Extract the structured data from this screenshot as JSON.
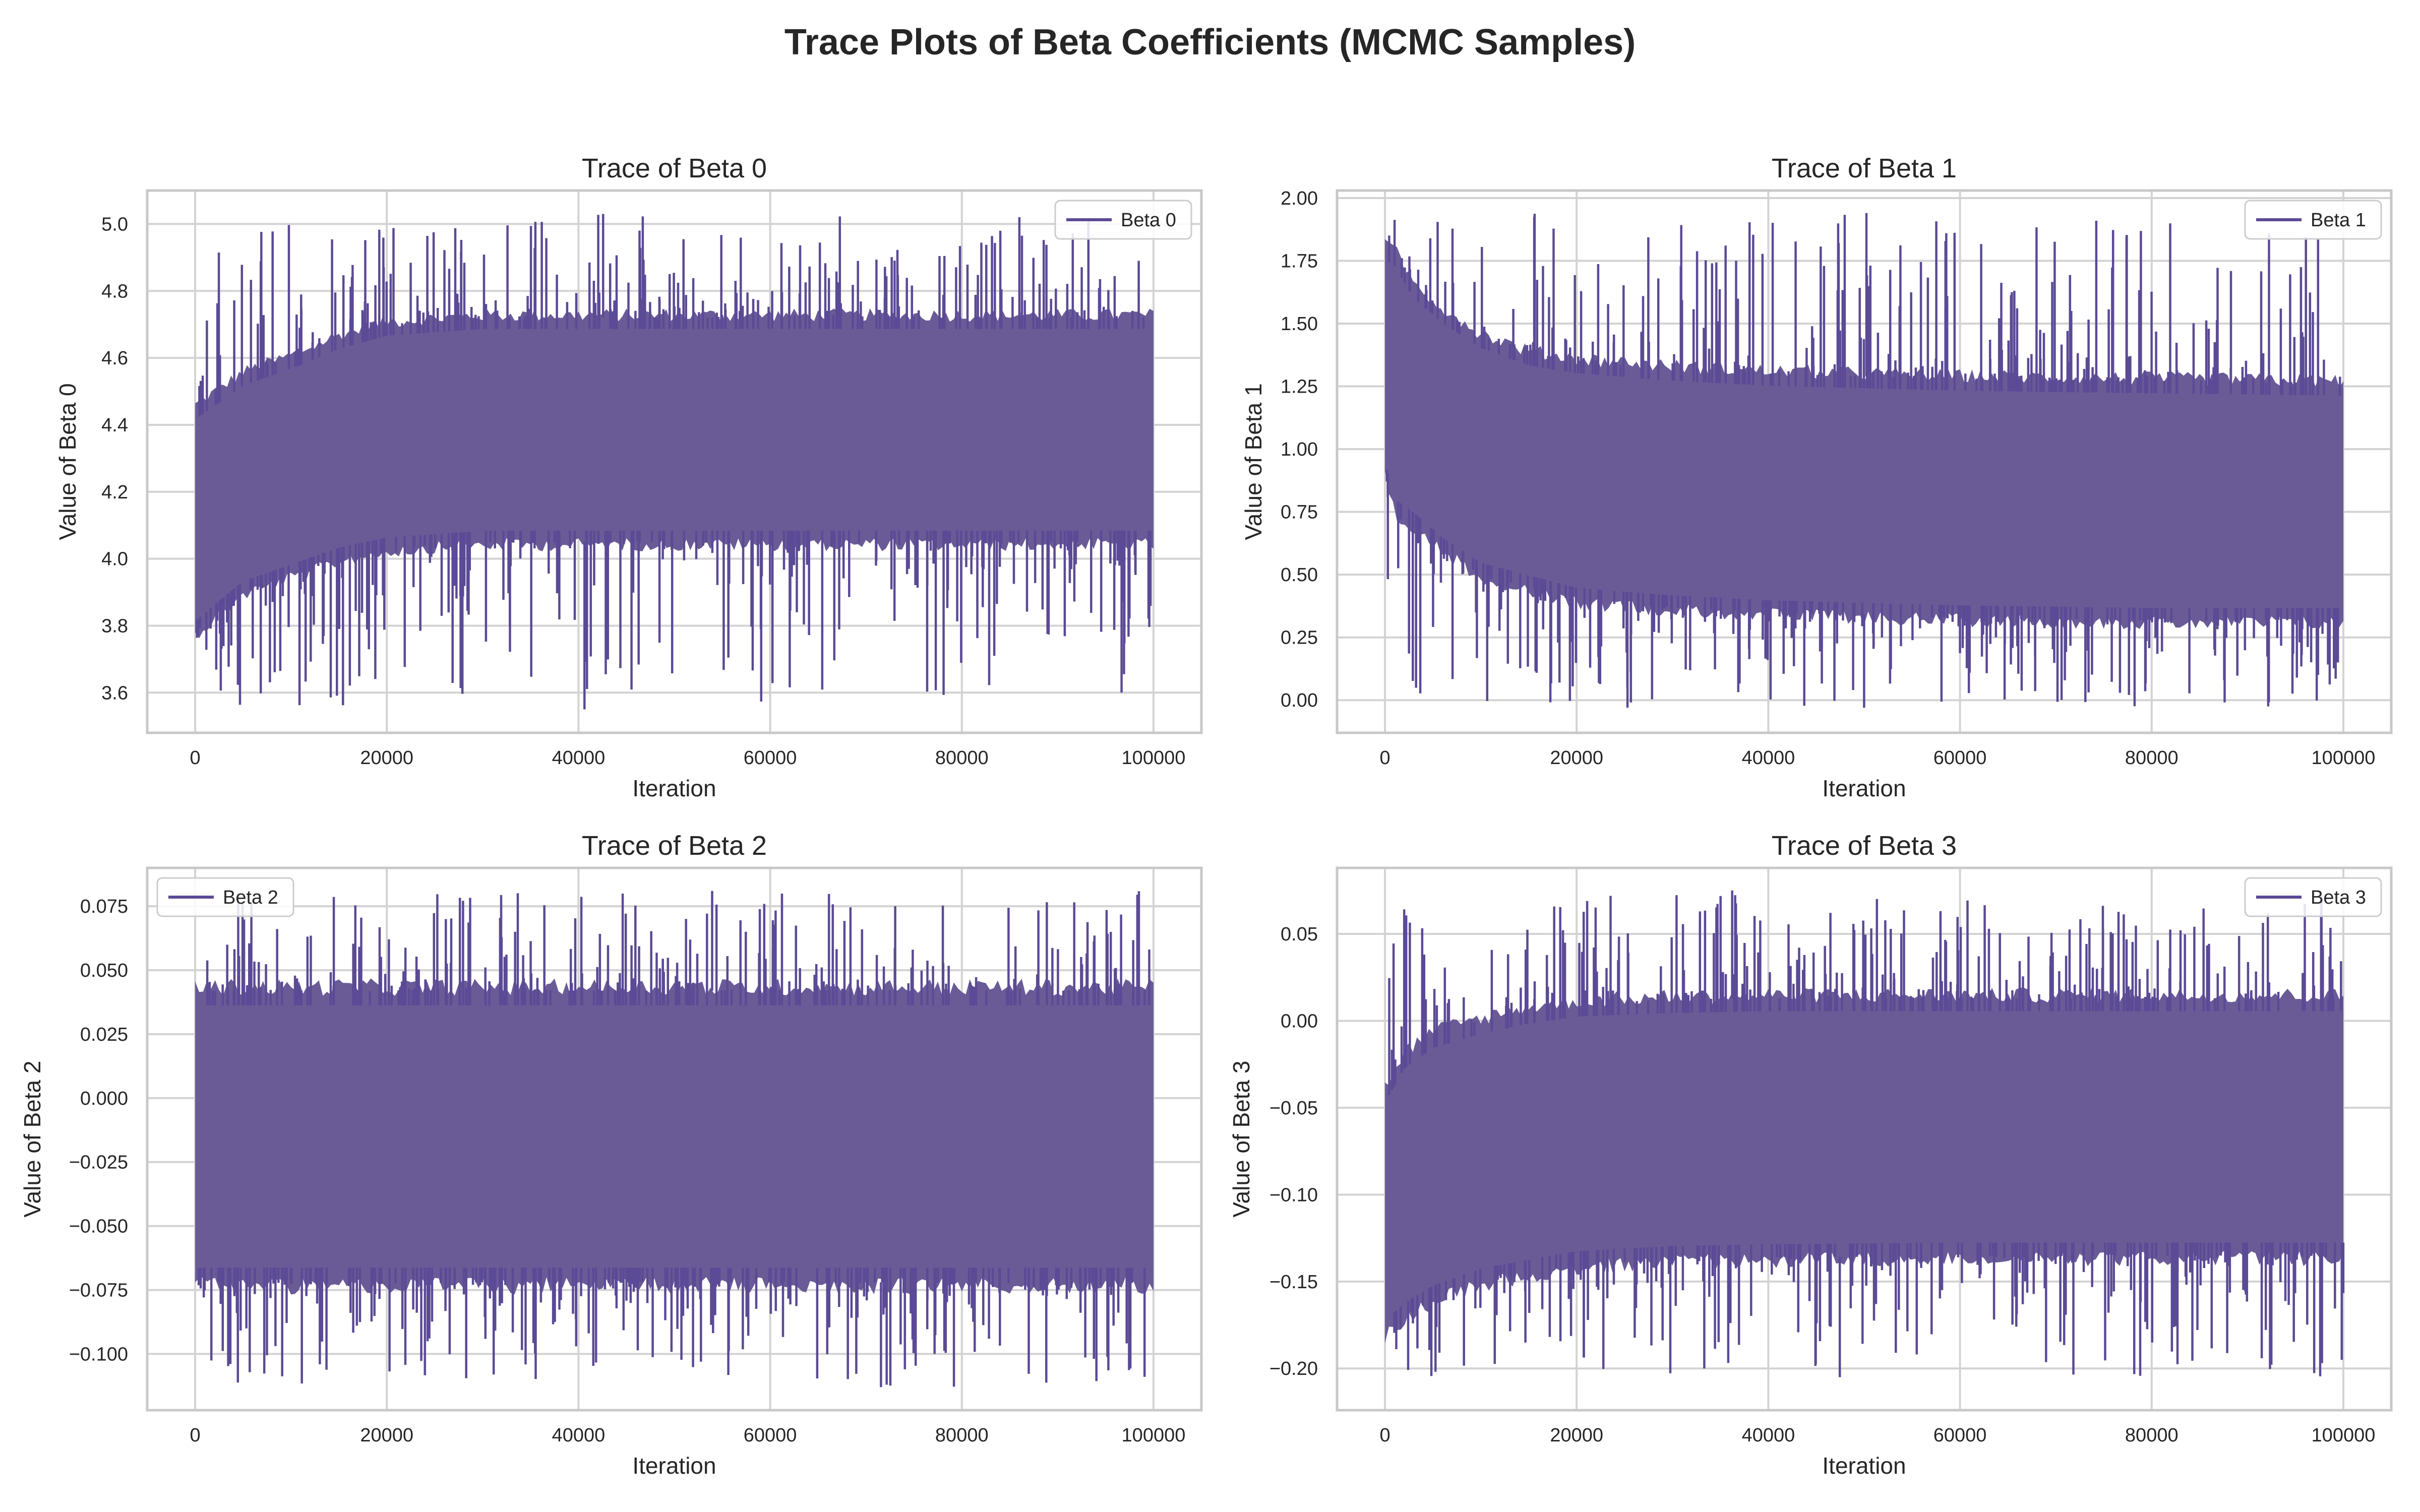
{
  "figure": {
    "title": "Trace Plots of Beta Coefficients (MCMC Samples)"
  },
  "style": {
    "line_color": "#5b4a95",
    "fill_color": "#6a5b97",
    "grid_color": "#d3d3d3",
    "axes_edge_color": "#c8c8c8",
    "text_color": "#262626"
  },
  "chart_data": [
    {
      "type": "line",
      "title": "Trace of Beta 0",
      "xlabel": "Iteration",
      "ylabel": "Value of Beta 0",
      "series": [
        {
          "name": "Beta 0"
        }
      ],
      "legend": "top-right",
      "grid": true,
      "xlim": [
        -5000,
        105000
      ],
      "ylim": [
        3.48,
        5.1
      ],
      "xticks": [
        0,
        20000,
        40000,
        60000,
        80000,
        100000
      ],
      "xtick_labels": [
        "0",
        "20000",
        "40000",
        "60000",
        "80000",
        "100000"
      ],
      "yticks": [
        3.6,
        3.8,
        4.0,
        4.2,
        4.4,
        4.6,
        4.8,
        5.0
      ],
      "ytick_labels": [
        "3.6",
        "3.8",
        "4.0",
        "4.2",
        "4.4",
        "4.6",
        "4.8",
        "5.0"
      ],
      "envelope": {
        "x": [
          0,
          5000,
          10000,
          15000,
          20000,
          30000,
          40000,
          60000,
          80000,
          100000
        ],
        "upper": [
          4.45,
          4.55,
          4.6,
          4.66,
          4.7,
          4.72,
          4.72,
          4.72,
          4.72,
          4.72
        ],
        "lower": [
          3.78,
          3.9,
          3.95,
          4.0,
          4.03,
          4.05,
          4.05,
          4.05,
          4.05,
          4.05
        ],
        "max": 5.03,
        "min": 3.55
      }
    },
    {
      "type": "line",
      "title": "Trace of Beta 1",
      "xlabel": "Iteration",
      "ylabel": "Value of Beta 1",
      "series": [
        {
          "name": "Beta 1"
        }
      ],
      "legend": "top-right",
      "grid": true,
      "xlim": [
        -5000,
        105000
      ],
      "ylim": [
        -0.13,
        2.03
      ],
      "xticks": [
        0,
        20000,
        40000,
        60000,
        80000,
        100000
      ],
      "xtick_labels": [
        "0",
        "20000",
        "40000",
        "60000",
        "80000",
        "100000"
      ],
      "yticks": [
        0.0,
        0.25,
        0.5,
        0.75,
        1.0,
        1.25,
        1.5,
        1.75,
        2.0
      ],
      "ytick_labels": [
        "0.00",
        "0.25",
        "0.50",
        "0.75",
        "1.00",
        "1.25",
        "1.50",
        "1.75",
        "2.00"
      ],
      "envelope": {
        "x": [
          0,
          1000,
          3000,
          6000,
          10000,
          15000,
          20000,
          30000,
          40000,
          60000,
          80000,
          100000
        ],
        "upper": [
          1.8,
          1.78,
          1.65,
          1.55,
          1.45,
          1.38,
          1.35,
          1.32,
          1.3,
          1.28,
          1.27,
          1.26
        ],
        "lower": [
          0.9,
          0.75,
          0.7,
          0.6,
          0.5,
          0.45,
          0.4,
          0.37,
          0.35,
          0.33,
          0.32,
          0.32
        ],
        "max": 1.94,
        "min": -0.03
      }
    },
    {
      "type": "line",
      "title": "Trace of Beta 2",
      "xlabel": "Iteration",
      "ylabel": "Value of Beta 2",
      "series": [
        {
          "name": "Beta 2"
        }
      ],
      "legend": "top-left",
      "grid": true,
      "xlim": [
        -5000,
        105000
      ],
      "ylim": [
        -0.122,
        0.09
      ],
      "xticks": [
        0,
        20000,
        40000,
        60000,
        80000,
        100000
      ],
      "xtick_labels": [
        "0",
        "20000",
        "40000",
        "60000",
        "80000",
        "100000"
      ],
      "yticks": [
        -0.1,
        -0.075,
        -0.05,
        -0.025,
        0.0,
        0.025,
        0.05,
        0.075
      ],
      "ytick_labels": [
        "−0.100",
        "−0.075",
        "−0.050",
        "−0.025",
        "0.000",
        "0.025",
        "0.050",
        "0.075"
      ],
      "envelope": {
        "x": [
          0,
          100000
        ],
        "upper": [
          0.042,
          0.042
        ],
        "lower": [
          -0.072,
          -0.072
        ],
        "max": 0.081,
        "min": -0.113
      }
    },
    {
      "type": "line",
      "title": "Trace of Beta 3",
      "xlabel": "Iteration",
      "ylabel": "Value of Beta 3",
      "series": [
        {
          "name": "Beta 3"
        }
      ],
      "legend": "top-right",
      "grid": true,
      "xlim": [
        -5000,
        105000
      ],
      "ylim": [
        -0.224,
        0.088
      ],
      "xticks": [
        0,
        20000,
        40000,
        60000,
        80000,
        100000
      ],
      "xtick_labels": [
        "0",
        "20000",
        "40000",
        "60000",
        "80000",
        "100000"
      ],
      "yticks": [
        -0.2,
        -0.15,
        -0.1,
        -0.05,
        0.0,
        0.05
      ],
      "ytick_labels": [
        "−0.20",
        "−0.15",
        "−0.10",
        "−0.05",
        "0.00",
        "0.05"
      ],
      "envelope": {
        "x": [
          0,
          2000,
          5000,
          10000,
          15000,
          20000,
          30000,
          40000,
          60000,
          80000,
          100000
        ],
        "upper": [
          -0.04,
          -0.02,
          -0.008,
          0.0,
          0.006,
          0.01,
          0.012,
          0.013,
          0.013,
          0.013,
          0.013
        ],
        "lower": [
          -0.18,
          -0.17,
          -0.16,
          -0.15,
          -0.145,
          -0.14,
          -0.137,
          -0.136,
          -0.135,
          -0.135,
          -0.135
        ],
        "max": 0.075,
        "min": -0.205
      }
    }
  ]
}
